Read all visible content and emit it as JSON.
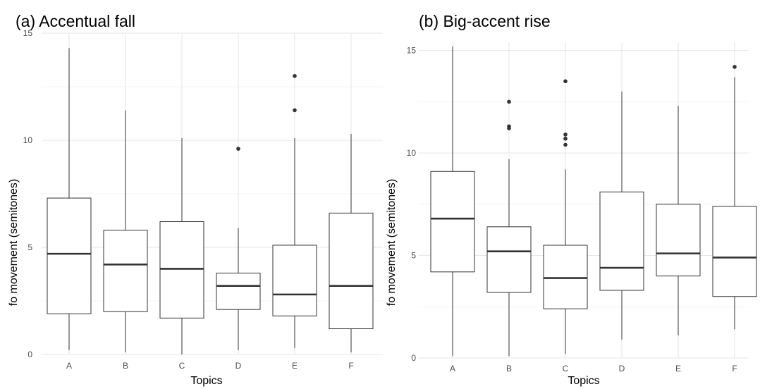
{
  "chart_data": [
    {
      "type": "box",
      "title": "(a) Accentual fall",
      "xlabel": "Topics",
      "ylabel": "fo movement (semitones)",
      "ylim": [
        0,
        15
      ],
      "yticks": [
        0,
        5,
        10,
        15
      ],
      "grid": true,
      "categories": [
        "A",
        "B",
        "C",
        "D",
        "E",
        "F"
      ],
      "boxes": [
        {
          "category": "A",
          "whisker_low": 0.2,
          "q1": 1.9,
          "median": 4.7,
          "q3": 7.3,
          "whisker_high": 14.3,
          "outliers": []
        },
        {
          "category": "B",
          "whisker_low": 0.1,
          "q1": 2.0,
          "median": 4.2,
          "q3": 5.8,
          "whisker_high": 11.4,
          "outliers": []
        },
        {
          "category": "C",
          "whisker_low": 0.0,
          "q1": 1.7,
          "median": 4.0,
          "q3": 6.2,
          "whisker_high": 10.1,
          "outliers": []
        },
        {
          "category": "D",
          "whisker_low": 0.2,
          "q1": 2.1,
          "median": 3.2,
          "q3": 3.8,
          "whisker_high": 5.9,
          "outliers": [
            9.6
          ]
        },
        {
          "category": "E",
          "whisker_low": 0.3,
          "q1": 1.8,
          "median": 2.8,
          "q3": 5.1,
          "whisker_high": 10.1,
          "outliers": [
            11.4,
            13.0
          ]
        },
        {
          "category": "F",
          "whisker_low": 0.1,
          "q1": 1.2,
          "median": 3.2,
          "q3": 6.6,
          "whisker_high": 10.3,
          "outliers": []
        }
      ]
    },
    {
      "type": "box",
      "title": "(b) Big-accent rise",
      "xlabel": "Topics",
      "ylabel": "fo movement (semitones)",
      "ylim": [
        0,
        15.4
      ],
      "yticks": [
        0,
        5,
        10,
        15
      ],
      "grid": true,
      "categories": [
        "A",
        "B",
        "C",
        "D",
        "E",
        "F"
      ],
      "boxes": [
        {
          "category": "A",
          "whisker_low": 0.1,
          "q1": 4.2,
          "median": 6.8,
          "q3": 9.1,
          "whisker_high": 15.2,
          "outliers": []
        },
        {
          "category": "B",
          "whisker_low": 0.1,
          "q1": 3.2,
          "median": 5.2,
          "q3": 6.4,
          "whisker_high": 9.7,
          "outliers": [
            11.2,
            11.3,
            12.5
          ]
        },
        {
          "category": "C",
          "whisker_low": 0.2,
          "q1": 2.4,
          "median": 3.9,
          "q3": 5.5,
          "whisker_high": 9.2,
          "outliers": [
            10.4,
            10.7,
            10.9,
            13.5
          ]
        },
        {
          "category": "D",
          "whisker_low": 0.9,
          "q1": 3.3,
          "median": 4.4,
          "q3": 8.1,
          "whisker_high": 13.0,
          "outliers": []
        },
        {
          "category": "E",
          "whisker_low": 1.1,
          "q1": 4.0,
          "median": 5.1,
          "q3": 7.5,
          "whisker_high": 12.3,
          "outliers": []
        },
        {
          "category": "F",
          "whisker_low": 1.4,
          "q1": 3.0,
          "median": 4.9,
          "q3": 7.4,
          "whisker_high": 13.7,
          "outliers": [
            14.2
          ]
        }
      ]
    }
  ]
}
